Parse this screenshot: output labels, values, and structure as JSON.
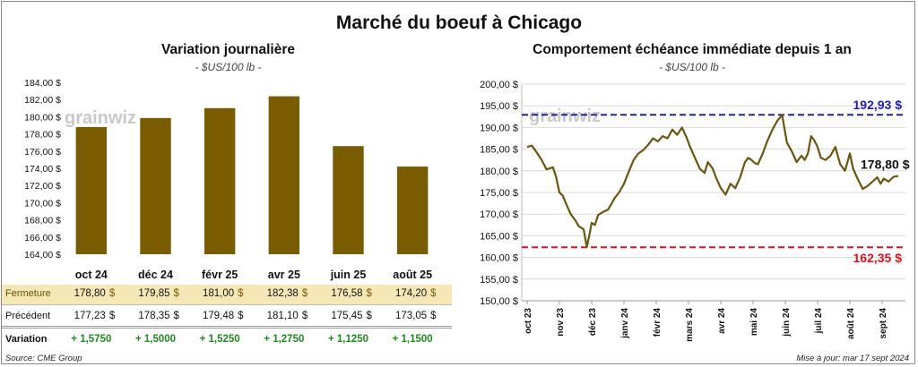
{
  "title": "Marché du boeuf à Chicago",
  "left_chart": {
    "title": "Variation  journalière",
    "unit": "- $US/100 lb -",
    "logo": "grainwiz"
  },
  "right_chart": {
    "title": "Comportement  échéance immédiate depuis 1 an",
    "unit": "- $US/100 lb -",
    "logo": "grainwiz",
    "high_label": "192,93 $",
    "low_label": "162,35 $",
    "last_label": "178,80 $"
  },
  "table": {
    "row_labels": [
      "Fermeture",
      "Précédent",
      "Variation"
    ],
    "fermeture": [
      "178,80",
      "179,85",
      "181,00",
      "182,38",
      "176,58",
      "174,20"
    ],
    "precedent": [
      "177,23",
      "178,35",
      "179,48",
      "181,10",
      "175,45",
      "173,05"
    ],
    "variation": [
      "+ 1,5750",
      "+ 1,5000",
      "+ 1,5250",
      "+ 1,2750",
      "+ 1,1250",
      "+ 1,1500"
    ],
    "currency": "$"
  },
  "footer": {
    "source": "Source: CME Group",
    "updated": "Mise à jour: mar 17 sept 2024"
  },
  "colors": {
    "bar": "#7a5c00",
    "line": "#6b5510",
    "high_line": "#1f1fa8",
    "low_line": "#e01020",
    "fermeture_bg": "#f6e7b6",
    "variation_text": "#1e8a1e"
  },
  "chart_data": [
    {
      "type": "bar",
      "title": "Variation  journalière",
      "subtitle": "- $US/100 lb -",
      "categories": [
        "oct 24",
        "déc 24",
        "févr 25",
        "avr 25",
        "juin 25",
        "août 25"
      ],
      "values": [
        178.8,
        179.85,
        181.0,
        182.38,
        176.58,
        174.2
      ],
      "ylim": [
        164,
        184
      ],
      "y_ticks": [
        "164,00 $",
        "166,00 $",
        "168,00 $",
        "170,00 $",
        "172,00 $",
        "174,00 $",
        "176,00 $",
        "178,00 $",
        "180,00 $",
        "182,00 $",
        "184,00 $"
      ],
      "grid": false
    },
    {
      "type": "line",
      "title": "Comportement  échéance immédiate depuis 1 an",
      "subtitle": "- $US/100 lb -",
      "x_ticks": [
        "oct 23",
        "nov 23",
        "déc 23",
        "janv 24",
        "févr 24",
        "mars 24",
        "avr 24",
        "mai 24",
        "juin 24",
        "juil 24",
        "août 24",
        "sept 24"
      ],
      "y_ticks": [
        "150,00 $",
        "155,00 $",
        "160,00 $",
        "165,00 $",
        "170,00 $",
        "175,00 $",
        "180,00 $",
        "185,00 $",
        "190,00 $",
        "195,00 $",
        "200,00 $"
      ],
      "ylim": [
        150,
        200
      ],
      "grid": true,
      "reference_lines": [
        {
          "label": "192,93 $",
          "value": 192.93
        },
        {
          "label": "162,35 $",
          "value": 162.35
        }
      ],
      "last_value_label": "178,80 $",
      "x": [
        0,
        0.15,
        0.3,
        0.45,
        0.6,
        0.8,
        0.9,
        1.0,
        1.1,
        1.2,
        1.35,
        1.5,
        1.6,
        1.75,
        1.85,
        1.95,
        2.0,
        2.1,
        2.2,
        2.35,
        2.5,
        2.6,
        2.7,
        2.85,
        3.0,
        3.15,
        3.3,
        3.45,
        3.6,
        3.75,
        3.9,
        4.05,
        4.2,
        4.35,
        4.5,
        4.65,
        4.8,
        4.95,
        5.05,
        5.2,
        5.35,
        5.5,
        5.6,
        5.75,
        5.85,
        6.0,
        6.15,
        6.3,
        6.45,
        6.6,
        6.75,
        6.85,
        6.95,
        7.05,
        7.15,
        7.3,
        7.45,
        7.6,
        7.75,
        7.9,
        8.05,
        8.2,
        8.35,
        8.5,
        8.6,
        8.7,
        8.8,
        8.9,
        9.0,
        9.1,
        9.25,
        9.4,
        9.55,
        9.7,
        9.85,
        10.0,
        10.1,
        10.25,
        10.4,
        10.55,
        10.7,
        10.85,
        10.95,
        11.05,
        11.2,
        11.35,
        11.5
      ],
      "values": [
        185.5,
        185.8,
        184.2,
        182.5,
        180.3,
        180.8,
        178.5,
        175.0,
        174.3,
        172.5,
        170.0,
        168.5,
        167.2,
        166.5,
        162.4,
        166.0,
        168.0,
        167.5,
        169.8,
        170.5,
        171.0,
        172.2,
        173.6,
        175.0,
        177.0,
        179.8,
        182.5,
        184.0,
        184.8,
        186.0,
        187.5,
        186.8,
        188.0,
        187.5,
        189.5,
        188.3,
        190.0,
        187.5,
        185.5,
        183.0,
        180.5,
        179.5,
        182.0,
        180.5,
        178.5,
        176.0,
        174.5,
        177.0,
        176.0,
        178.5,
        182.0,
        183.0,
        182.5,
        181.8,
        181.5,
        184.0,
        187.0,
        189.5,
        191.5,
        192.9,
        186.5,
        184.5,
        182.0,
        183.5,
        182.5,
        184.0,
        188.0,
        187.0,
        185.5,
        183.0,
        182.5,
        183.5,
        185.5,
        181.5,
        180.0,
        184.0,
        180.5,
        178.0,
        175.8,
        176.5,
        177.5,
        178.5,
        177.0,
        178.2,
        177.5,
        178.6,
        178.8
      ]
    }
  ]
}
